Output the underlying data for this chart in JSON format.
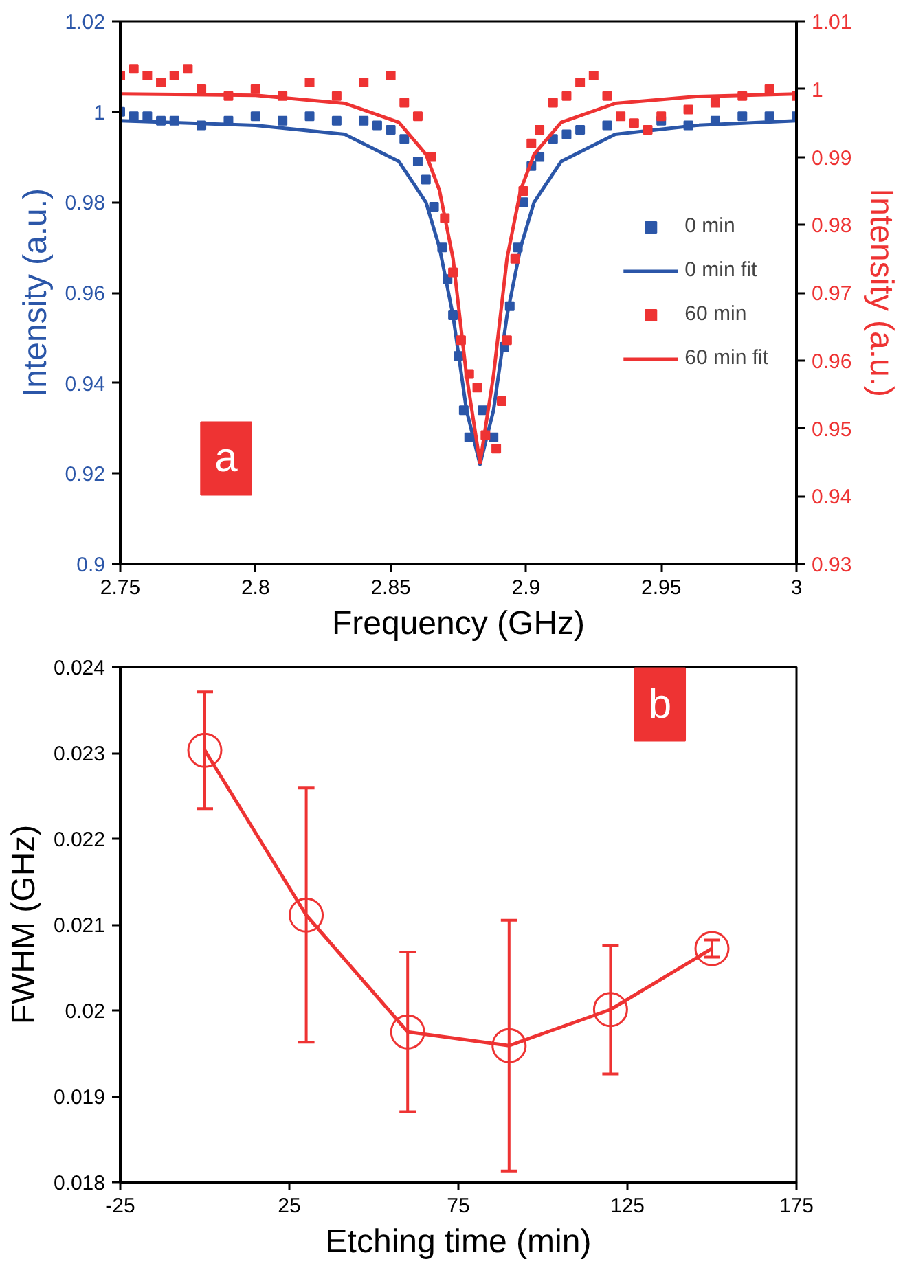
{
  "chart_data": [
    {
      "type": "scatter",
      "xlabel": "Frequency (GHz)",
      "ylabel": "Intensity (a.u.)",
      "y2label": "Intensity (a.u.)",
      "xlim": [
        2.75,
        3
      ],
      "xticks": [
        2.75,
        2.8,
        2.85,
        2.9,
        2.95,
        3
      ],
      "ylim": [
        0.9,
        1.02
      ],
      "yticks": [
        0.9,
        0.92,
        0.94,
        0.96,
        0.98,
        1,
        1.02
      ],
      "y2lim": [
        0.93,
        1.01
      ],
      "y2ticks": [
        0.93,
        0.94,
        0.95,
        0.96,
        0.97,
        0.98,
        0.99,
        1,
        1.01
      ],
      "grid": false,
      "legend": "right",
      "annotations": [
        "a"
      ],
      "series": [
        {
          "name": "0 min",
          "type": "scatter",
          "marker": "square",
          "color": "#2b56a8",
          "x": [
            2.75,
            2.755,
            2.76,
            2.765,
            2.77,
            2.78,
            2.79,
            2.8,
            2.81,
            2.82,
            2.83,
            2.84,
            2.845,
            2.85,
            2.855,
            2.86,
            2.863,
            2.866,
            2.869,
            2.871,
            2.873,
            2.875,
            2.877,
            2.879,
            2.881,
            2.884,
            2.888,
            2.89,
            2.892,
            2.894,
            2.897,
            2.899,
            2.902,
            2.905,
            2.91,
            2.915,
            2.92,
            2.93,
            2.94,
            2.95,
            2.96,
            2.97,
            2.98,
            2.99,
            3.0
          ],
          "values": [
            1.0,
            0.999,
            0.999,
            0.998,
            0.998,
            0.997,
            0.998,
            0.999,
            0.998,
            0.999,
            0.998,
            0.998,
            0.997,
            0.996,
            0.994,
            0.989,
            0.985,
            0.979,
            0.97,
            0.963,
            0.955,
            0.946,
            0.934,
            0.928,
            null,
            0.934,
            0.928,
            null,
            0.948,
            0.957,
            0.97,
            0.98,
            0.988,
            0.99,
            0.994,
            0.995,
            0.996,
            0.997,
            null,
            0.998,
            0.997,
            0.998,
            0.999,
            0.999,
            0.999
          ]
        },
        {
          "name": "0 min fit",
          "type": "line",
          "marker": "none",
          "color": "#2b56a8",
          "x": [
            2.75,
            2.8,
            2.833,
            2.853,
            2.863,
            2.868,
            2.873,
            2.878,
            2.883,
            2.888,
            2.893,
            2.898,
            2.903,
            2.913,
            2.933,
            2.963,
            3.0
          ],
          "values": [
            0.998,
            0.997,
            0.995,
            0.989,
            0.98,
            0.97,
            0.955,
            0.934,
            0.922,
            0.934,
            0.955,
            0.97,
            0.98,
            0.989,
            0.995,
            0.997,
            0.998
          ]
        },
        {
          "name": "60 min",
          "type": "scatter",
          "marker": "square",
          "axis": "y2",
          "color": "#ee3333",
          "x": [
            2.75,
            2.755,
            2.76,
            2.765,
            2.77,
            2.775,
            2.78,
            2.79,
            2.8,
            2.81,
            2.82,
            2.83,
            2.84,
            2.85,
            2.855,
            2.86,
            2.865,
            2.87,
            2.873,
            2.876,
            2.879,
            2.882,
            2.885,
            2.889,
            2.891,
            2.893,
            2.896,
            2.899,
            2.902,
            2.905,
            2.91,
            2.915,
            2.92,
            2.925,
            2.93,
            2.935,
            2.94,
            2.945,
            2.95,
            2.96,
            2.97,
            2.98,
            2.99,
            3.0
          ],
          "values": [
            1.002,
            1.003,
            1.002,
            1.001,
            1.002,
            1.003,
            1.0,
            0.999,
            1.0,
            0.999,
            1.001,
            0.999,
            1.001,
            1.002,
            0.998,
            0.996,
            0.99,
            0.981,
            0.973,
            0.963,
            0.958,
            0.956,
            0.949,
            0.947,
            0.954,
            0.963,
            0.975,
            0.985,
            0.992,
            0.994,
            0.998,
            0.999,
            1.001,
            1.002,
            0.999,
            0.996,
            0.995,
            0.994,
            0.996,
            0.997,
            0.998,
            0.999,
            1.0,
            0.999
          ]
        },
        {
          "name": "60 min fit",
          "type": "line",
          "marker": "none",
          "axis": "y2",
          "color": "#ee3333",
          "x": [
            2.75,
            2.8,
            2.833,
            2.853,
            2.863,
            2.868,
            2.873,
            2.878,
            2.883,
            2.888,
            2.893,
            2.898,
            2.903,
            2.913,
            2.933,
            2.963,
            3.0
          ],
          "values": [
            0.9993,
            0.9991,
            0.9979,
            0.9951,
            0.9904,
            0.9851,
            0.9751,
            0.9578,
            0.9449,
            0.9578,
            0.9751,
            0.9851,
            0.9904,
            0.9951,
            0.9979,
            0.9989,
            0.9993
          ]
        }
      ]
    },
    {
      "type": "line",
      "xlabel": "Etching time (min)",
      "ylabel": "FWHM (GHz)",
      "xlim": [
        -25,
        175
      ],
      "xticks": [
        -25,
        25,
        75,
        125,
        175
      ],
      "ylim": [
        0.018,
        0.024
      ],
      "yticks": [
        0.018,
        0.019,
        0.02,
        0.021,
        0.022,
        0.023,
        0.024
      ],
      "grid": false,
      "legend": false,
      "marker": "circle",
      "annotations": [
        "b"
      ],
      "series": [
        {
          "color": "#ee3333",
          "x": [
            0,
            30,
            60,
            90,
            120,
            150
          ],
          "values": [
            0.02303,
            0.02111,
            0.01975,
            0.01959,
            0.02001,
            0.02072
          ],
          "errors": [
            0.00068,
            0.00148,
            0.00093,
            0.00146,
            0.00075,
            0.0001
          ]
        }
      ]
    }
  ]
}
